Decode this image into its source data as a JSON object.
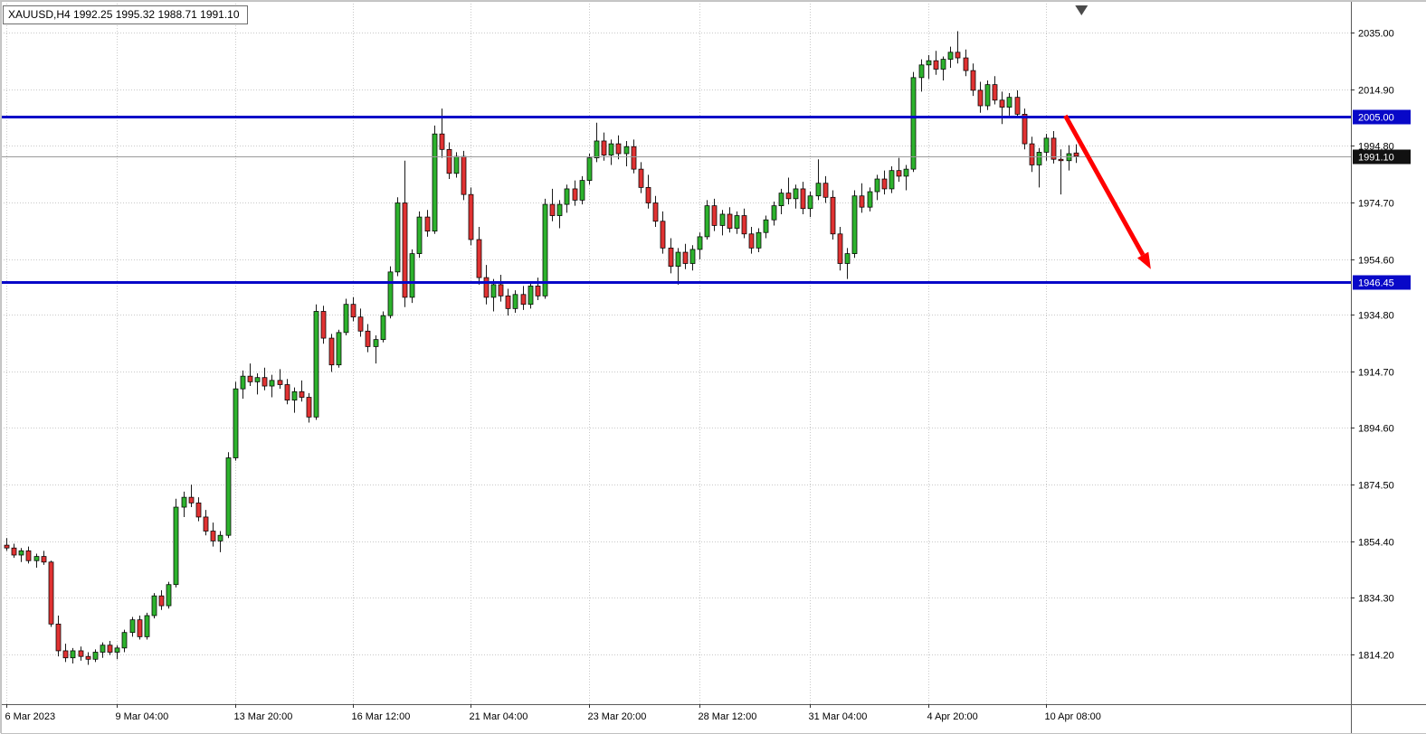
{
  "header": {
    "ohlc_text": "XAUUSD,H4  1992.25 1995.32 1988.71 1991.10"
  },
  "chart_data": {
    "type": "candlestick",
    "symbol": "XAUUSD",
    "timeframe": "H4",
    "title": "XAUUSD,H4",
    "ohlc_display": {
      "open": "1992.25",
      "high": "1995.32",
      "low": "1988.71",
      "close": "1991.10"
    },
    "grid": true,
    "ylim": [
      1808,
      2040
    ],
    "y_axis_labels": [
      "2035.00",
      "2014.90",
      "1994.80",
      "1974.70",
      "1954.60",
      "1934.80",
      "1914.70",
      "1894.60",
      "1874.50",
      "1854.40",
      "1834.30",
      "1814.20"
    ],
    "x_axis_labels": [
      {
        "text": "6 Mar 2023",
        "index": 0
      },
      {
        "text": "9 Mar 04:00",
        "index": 15
      },
      {
        "text": "13 Mar 20:00",
        "index": 31
      },
      {
        "text": "16 Mar 12:00",
        "index": 47
      },
      {
        "text": "21 Mar 04:00",
        "index": 63
      },
      {
        "text": "23 Mar 20:00",
        "index": 79
      },
      {
        "text": "28 Mar 12:00",
        "index": 94
      },
      {
        "text": "31 Mar 04:00",
        "index": 109
      },
      {
        "text": "4 Apr 20:00",
        "index": 125
      },
      {
        "text": "10 Apr 08:00",
        "index": 141
      }
    ],
    "hlines": [
      {
        "price": 2005.0,
        "label": "2005.00",
        "role": "resistance"
      },
      {
        "price": 1946.45,
        "label": "1946.45",
        "role": "support"
      }
    ],
    "current_price": {
      "value": 1991.1,
      "label": "1991.10"
    },
    "annotation_arrow": {
      "from": {
        "index": 143.6,
        "price": 2005.5
      },
      "to": {
        "index": 155.2,
        "price": 1951.0
      }
    },
    "shift_marker": {
      "index": 145.8
    },
    "colors": {
      "bull": "#2db22d",
      "bear": "#e03232",
      "wick": "#1a1a1a",
      "grid": "#c9c9c9",
      "hline": "#0808c8",
      "price_tag_bg": "#111111",
      "bid_line": "#9a9a9a",
      "arrow": "#ff0000",
      "axis_text": "#000000",
      "background": "#ffffff"
    },
    "candles": [
      [
        1853.0,
        1855.5,
        1851.0,
        1852.0
      ],
      [
        1852.0,
        1853.5,
        1848.5,
        1849.5
      ],
      [
        1849.5,
        1852.0,
        1847.0,
        1851.0
      ],
      [
        1851.0,
        1852.5,
        1846.5,
        1847.5
      ],
      [
        1847.5,
        1850.0,
        1845.0,
        1849.0
      ],
      [
        1849.0,
        1851.0,
        1846.0,
        1847.0
      ],
      [
        1847.0,
        1847.5,
        1824.0,
        1825.0
      ],
      [
        1825.0,
        1828.0,
        1813.5,
        1815.5
      ],
      [
        1815.5,
        1818.0,
        1811.5,
        1813.0
      ],
      [
        1813.0,
        1816.5,
        1811.0,
        1815.5
      ],
      [
        1815.5,
        1817.0,
        1812.0,
        1813.5
      ],
      [
        1813.5,
        1815.0,
        1810.5,
        1812.5
      ],
      [
        1812.5,
        1816.0,
        1811.5,
        1815.0
      ],
      [
        1815.0,
        1818.5,
        1813.0,
        1817.5
      ],
      [
        1817.5,
        1819.0,
        1814.0,
        1815.0
      ],
      [
        1815.0,
        1817.5,
        1812.5,
        1816.5
      ],
      [
        1816.5,
        1823.0,
        1815.0,
        1822.0
      ],
      [
        1822.0,
        1827.5,
        1820.5,
        1826.5
      ],
      [
        1826.5,
        1828.0,
        1819.5,
        1820.5
      ],
      [
        1820.5,
        1829.0,
        1819.5,
        1828.0
      ],
      [
        1828.0,
        1836.0,
        1827.0,
        1835.0
      ],
      [
        1835.0,
        1837.0,
        1830.0,
        1831.5
      ],
      [
        1831.5,
        1840.0,
        1830.5,
        1839.0
      ],
      [
        1839.0,
        1869.5,
        1838.0,
        1866.5
      ],
      [
        1866.5,
        1872.0,
        1863.0,
        1870.0
      ],
      [
        1870.0,
        1874.5,
        1866.5,
        1868.0
      ],
      [
        1868.0,
        1870.0,
        1861.5,
        1863.0
      ],
      [
        1863.0,
        1865.5,
        1856.5,
        1858.0
      ],
      [
        1858.0,
        1861.0,
        1852.5,
        1854.5
      ],
      [
        1854.5,
        1858.0,
        1850.5,
        1856.5
      ],
      [
        1856.5,
        1886.0,
        1855.5,
        1884.0
      ],
      [
        1884.0,
        1911.0,
        1883.0,
        1908.5
      ],
      [
        1908.5,
        1915.0,
        1905.0,
        1913.0
      ],
      [
        1913.0,
        1917.5,
        1909.5,
        1911.0
      ],
      [
        1911.0,
        1914.0,
        1906.5,
        1912.5
      ],
      [
        1912.5,
        1916.0,
        1908.0,
        1909.5
      ],
      [
        1909.5,
        1913.5,
        1905.5,
        1911.5
      ],
      [
        1911.5,
        1915.5,
        1908.5,
        1910.0
      ],
      [
        1910.0,
        1912.0,
        1903.0,
        1904.5
      ],
      [
        1904.5,
        1909.0,
        1900.0,
        1907.5
      ],
      [
        1907.5,
        1911.5,
        1904.0,
        1905.5
      ],
      [
        1905.5,
        1907.0,
        1896.5,
        1898.5
      ],
      [
        1898.5,
        1938.5,
        1897.5,
        1936.0
      ],
      [
        1936.0,
        1938.0,
        1924.5,
        1926.5
      ],
      [
        1926.5,
        1928.0,
        1914.5,
        1917.0
      ],
      [
        1917.0,
        1929.5,
        1916.0,
        1928.5
      ],
      [
        1928.5,
        1940.5,
        1927.5,
        1938.5
      ],
      [
        1938.5,
        1941.0,
        1932.5,
        1934.0
      ],
      [
        1934.0,
        1937.0,
        1927.0,
        1929.0
      ],
      [
        1929.0,
        1931.5,
        1921.5,
        1923.5
      ],
      [
        1923.5,
        1927.5,
        1917.5,
        1926.0
      ],
      [
        1926.0,
        1936.0,
        1925.0,
        1934.5
      ],
      [
        1934.5,
        1952.0,
        1933.5,
        1950.0
      ],
      [
        1950.0,
        1976.5,
        1948.5,
        1974.5
      ],
      [
        1974.5,
        1989.5,
        1937.5,
        1941.0
      ],
      [
        1941.0,
        1958.0,
        1939.0,
        1956.5
      ],
      [
        1956.5,
        1971.5,
        1955.0,
        1969.5
      ],
      [
        1969.5,
        1972.0,
        1962.5,
        1964.5
      ],
      [
        1964.5,
        2002.0,
        1963.5,
        1999.0
      ],
      [
        1999.0,
        2008.0,
        1990.5,
        1993.5
      ],
      [
        1993.5,
        1996.0,
        1983.0,
        1985.0
      ],
      [
        1985.0,
        1992.5,
        1983.5,
        1991.0
      ],
      [
        1991.0,
        1993.0,
        1975.5,
        1977.5
      ],
      [
        1977.5,
        1980.0,
        1959.5,
        1961.5
      ],
      [
        1961.5,
        1966.0,
        1945.5,
        1948.0
      ],
      [
        1948.0,
        1952.5,
        1938.5,
        1941.0
      ],
      [
        1941.0,
        1947.5,
        1936.0,
        1945.5
      ],
      [
        1945.5,
        1949.0,
        1939.5,
        1941.5
      ],
      [
        1941.5,
        1944.0,
        1934.5,
        1937.0
      ],
      [
        1937.0,
        1943.5,
        1935.5,
        1942.0
      ],
      [
        1942.0,
        1945.0,
        1936.5,
        1938.5
      ],
      [
        1938.5,
        1946.5,
        1937.0,
        1945.0
      ],
      [
        1945.0,
        1948.0,
        1940.0,
        1941.5
      ],
      [
        1941.5,
        1976.0,
        1940.5,
        1974.0
      ],
      [
        1974.0,
        1979.5,
        1968.0,
        1970.0
      ],
      [
        1970.0,
        1975.5,
        1965.5,
        1974.0
      ],
      [
        1974.0,
        1981.0,
        1971.0,
        1979.5
      ],
      [
        1979.5,
        1982.5,
        1973.5,
        1975.5
      ],
      [
        1975.5,
        1984.0,
        1974.0,
        1982.5
      ],
      [
        1982.5,
        1992.0,
        1981.0,
        1990.5
      ],
      [
        1990.5,
        2003.0,
        1989.0,
        1996.5
      ],
      [
        1996.5,
        1999.5,
        1989.5,
        1991.5
      ],
      [
        1991.5,
        1997.0,
        1988.0,
        1995.5
      ],
      [
        1995.5,
        1998.5,
        1990.0,
        1992.0
      ],
      [
        1992.0,
        1996.5,
        1987.5,
        1994.5
      ],
      [
        1994.5,
        1997.0,
        1985.0,
        1986.5
      ],
      [
        1986.5,
        1989.0,
        1978.0,
        1980.0
      ],
      [
        1980.0,
        1984.5,
        1972.5,
        1974.5
      ],
      [
        1974.5,
        1977.0,
        1966.0,
        1968.0
      ],
      [
        1968.0,
        1971.5,
        1956.5,
        1958.5
      ],
      [
        1958.5,
        1962.0,
        1949.5,
        1952.0
      ],
      [
        1952.0,
        1958.5,
        1945.5,
        1957.0
      ],
      [
        1957.0,
        1960.0,
        1951.0,
        1953.0
      ],
      [
        1953.0,
        1959.5,
        1950.5,
        1958.0
      ],
      [
        1958.0,
        1964.0,
        1954.5,
        1962.5
      ],
      [
        1962.5,
        1975.5,
        1961.5,
        1973.5
      ],
      [
        1973.5,
        1976.0,
        1964.5,
        1966.5
      ],
      [
        1966.5,
        1972.0,
        1963.0,
        1970.5
      ],
      [
        1970.5,
        1973.0,
        1964.0,
        1965.5
      ],
      [
        1965.5,
        1971.5,
        1963.5,
        1970.0
      ],
      [
        1970.0,
        1972.5,
        1962.0,
        1963.5
      ],
      [
        1963.5,
        1966.0,
        1956.5,
        1958.5
      ],
      [
        1958.5,
        1965.5,
        1957.0,
        1964.0
      ],
      [
        1964.0,
        1970.0,
        1962.0,
        1968.5
      ],
      [
        1968.5,
        1975.0,
        1966.5,
        1973.5
      ],
      [
        1973.5,
        1979.5,
        1970.5,
        1978.0
      ],
      [
        1978.0,
        1983.5,
        1974.0,
        1976.0
      ],
      [
        1976.0,
        1981.0,
        1972.5,
        1979.5
      ],
      [
        1979.5,
        1982.0,
        1970.5,
        1972.5
      ],
      [
        1972.5,
        1978.5,
        1969.5,
        1977.0
      ],
      [
        1977.0,
        1990.0,
        1975.5,
        1981.5
      ],
      [
        1981.5,
        1984.0,
        1974.5,
        1976.5
      ],
      [
        1976.5,
        1979.0,
        1961.5,
        1963.5
      ],
      [
        1963.5,
        1966.0,
        1950.5,
        1953.0
      ],
      [
        1953.0,
        1958.5,
        1947.5,
        1956.5
      ],
      [
        1956.5,
        1979.0,
        1955.0,
        1977.0
      ],
      [
        1977.0,
        1981.5,
        1971.0,
        1973.0
      ],
      [
        1973.0,
        1980.0,
        1971.5,
        1978.5
      ],
      [
        1978.5,
        1984.5,
        1975.5,
        1983.0
      ],
      [
        1983.0,
        1986.0,
        1977.5,
        1979.5
      ],
      [
        1979.5,
        1987.5,
        1978.0,
        1986.0
      ],
      [
        1986.0,
        1990.5,
        1982.0,
        1984.0
      ],
      [
        1984.0,
        1988.0,
        1979.0,
        1986.5
      ],
      [
        1986.5,
        2021.0,
        1985.5,
        2019.0
      ],
      [
        2019.0,
        2025.5,
        2014.0,
        2023.5
      ],
      [
        2023.5,
        2027.0,
        2018.5,
        2025.0
      ],
      [
        2025.0,
        2028.5,
        2020.0,
        2022.0
      ],
      [
        2022.0,
        2026.5,
        2018.0,
        2025.5
      ],
      [
        2025.5,
        2030.0,
        2022.5,
        2028.0
      ],
      [
        2028.0,
        2035.5,
        2024.0,
        2026.0
      ],
      [
        2026.0,
        2029.0,
        2019.5,
        2021.5
      ],
      [
        2021.5,
        2024.0,
        2012.5,
        2014.5
      ],
      [
        2014.5,
        2017.5,
        2006.5,
        2009.0
      ],
      [
        2009.0,
        2018.0,
        2007.5,
        2016.5
      ],
      [
        2016.5,
        2019.5,
        2009.5,
        2011.0
      ],
      [
        2011.0,
        2014.0,
        2002.5,
        2008.5
      ],
      [
        2008.5,
        2013.5,
        2005.5,
        2012.0
      ],
      [
        2012.0,
        2014.5,
        2004.5,
        2006.0
      ],
      [
        2006.0,
        2008.0,
        1993.5,
        1995.5
      ],
      [
        1995.5,
        1998.0,
        1985.5,
        1988.0
      ],
      [
        1988.0,
        1994.0,
        1980.0,
        1992.5
      ],
      [
        1992.5,
        1999.0,
        1989.5,
        1997.5
      ],
      [
        1997.5,
        2000.0,
        1988.5,
        1990.0
      ],
      [
        1990.0,
        1993.5,
        1977.5,
        1989.5
      ],
      [
        1989.5,
        1995.0,
        1986.0,
        1992.0
      ],
      [
        1992.25,
        1995.32,
        1988.71,
        1991.1
      ]
    ]
  }
}
